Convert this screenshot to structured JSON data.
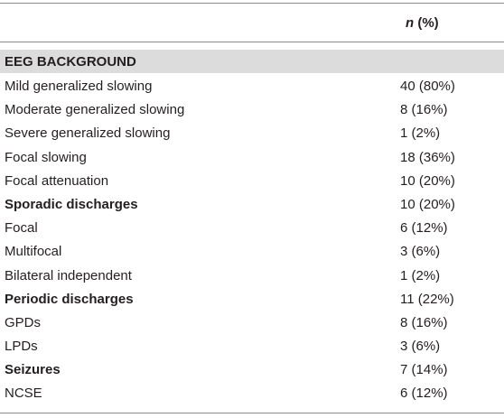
{
  "table": {
    "header": {
      "stub": "",
      "col_italic": "n",
      "col_rest": " (%)"
    },
    "section_title": "EEG BACKGROUND",
    "rows": [
      {
        "label": "Mild generalized slowing",
        "value": "40 (80%)",
        "bold": false
      },
      {
        "label": "Moderate generalized slowing",
        "value": "8 (16%)",
        "bold": false
      },
      {
        "label": "Severe generalized slowing",
        "value": "1 (2%)",
        "bold": false
      },
      {
        "label": "Focal slowing",
        "value": "18 (36%)",
        "bold": false
      },
      {
        "label": "Focal attenuation",
        "value": "10 (20%)",
        "bold": false
      },
      {
        "label": "Sporadic discharges",
        "value": "10 (20%)",
        "bold": true
      },
      {
        "label": "Focal",
        "value": "6 (12%)",
        "bold": false
      },
      {
        "label": "Multifocal",
        "value": "3 (6%)",
        "bold": false
      },
      {
        "label": "Bilateral independent",
        "value": "1 (2%)",
        "bold": false
      },
      {
        "label": "Periodic discharges",
        "value": "11 (22%)",
        "bold": true
      },
      {
        "label": "GPDs",
        "value": "8 (16%)",
        "bold": false
      },
      {
        "label": "LPDs",
        "value": "3 (6%)",
        "bold": false
      },
      {
        "label": "Seizures",
        "value": "7 (14%)",
        "bold": true
      },
      {
        "label": "NCSE",
        "value": "6 (12%)",
        "bold": false
      }
    ]
  }
}
